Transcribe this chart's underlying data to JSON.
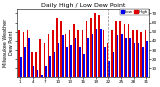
{
  "title": "Daily High / Low Dew Point",
  "ylabel": "Milwaukee Weather\nDew Point",
  "legend_labels": [
    "Low",
    "High"
  ],
  "bar_width": 0.38,
  "ylim": [
    0,
    75
  ],
  "ytick_values": [
    10,
    20,
    30,
    40,
    50,
    60,
    70
  ],
  "days": [
    1,
    2,
    3,
    4,
    5,
    6,
    7,
    8,
    9,
    10,
    11,
    12,
    13,
    14,
    15,
    16,
    17,
    18,
    19,
    20,
    21,
    22,
    23,
    24,
    25,
    26,
    27,
    28,
    29,
    30,
    31
  ],
  "high": [
    52,
    50,
    52,
    28,
    28,
    42,
    38,
    48,
    52,
    65,
    62,
    48,
    52,
    58,
    52,
    52,
    62,
    65,
    70,
    68,
    52,
    38,
    52,
    62,
    62,
    58,
    58,
    52,
    52,
    50,
    52
  ],
  "low": [
    22,
    33,
    43,
    13,
    8,
    3,
    13,
    23,
    28,
    38,
    46,
    33,
    36,
    43,
    33,
    26,
    43,
    48,
    53,
    53,
    33,
    18,
    28,
    46,
    48,
    43,
    43,
    38,
    38,
    33,
    40
  ],
  "dashed_vline_x": 21.0,
  "bg_color": "#ffffff",
  "title_fontsize": 4.5,
  "tick_fontsize": 3.0,
  "legend_fontsize": 3.0,
  "bar_color_high": "#dd0000",
  "bar_color_low": "#0000ee",
  "ylabel_fontsize": 3.5,
  "spine_color": "#000000"
}
